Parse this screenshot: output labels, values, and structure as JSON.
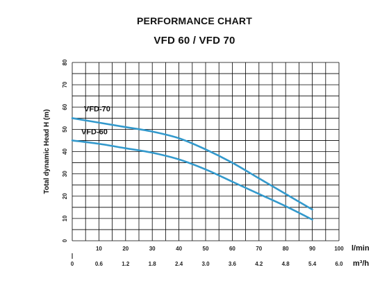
{
  "chart_data": {
    "type": "line",
    "title": "PERFORMANCE CHART",
    "subtitle": "VFD 60  / VFD 70",
    "ylabel": "Total dynamic Head H (m)",
    "xlabel": "l/min",
    "x2label": "m³/h",
    "xlim": [
      0,
      100
    ],
    "ylim": [
      0,
      80
    ],
    "grid": true,
    "y_ticks": [
      "0",
      "10",
      "20",
      "30",
      "40",
      "50",
      "60",
      "70",
      "80"
    ],
    "x_ticks": [
      "10",
      "20",
      "30",
      "40",
      "50",
      "60",
      "70",
      "80",
      "90",
      "100"
    ],
    "x2_ticks": [
      "0",
      "0.6",
      "1.2",
      "1.8",
      "2.4",
      "3.0",
      "3.6",
      "4.2",
      "4.8",
      "5.4",
      "6.0"
    ],
    "series": [
      {
        "name": "VFD-70",
        "x": [
          0,
          10,
          20,
          30,
          40,
          50,
          60,
          70,
          80,
          90
        ],
        "y": [
          55,
          53,
          51,
          49,
          46,
          41,
          35,
          28,
          21,
          14
        ]
      },
      {
        "name": "VFD-60",
        "x": [
          0,
          10,
          20,
          30,
          40,
          50,
          60,
          70,
          80,
          90
        ],
        "y": [
          45,
          43.5,
          41.5,
          39.5,
          36.5,
          32,
          26.5,
          21,
          15.5,
          9.5
        ]
      }
    ],
    "colors": {
      "line": "#3399cc",
      "grid": "#000000"
    }
  }
}
